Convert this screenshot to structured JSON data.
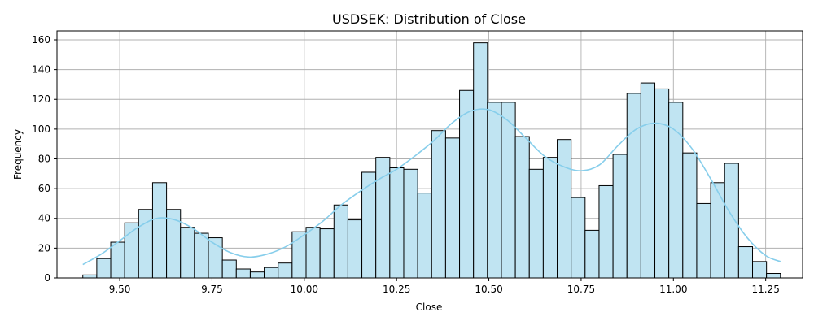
{
  "chart_data": {
    "type": "bar",
    "subtype": "histogram-with-kde",
    "title": "USDSEK: Distribution of Close",
    "xlabel": "Close",
    "ylabel": "Frequency",
    "xlim": [
      9.33,
      11.35
    ],
    "ylim": [
      0,
      166
    ],
    "grid": true,
    "xticks": [
      9.5,
      9.75,
      10.0,
      10.25,
      10.5,
      10.75,
      11.0,
      11.25
    ],
    "xtick_labels": [
      "9.50",
      "9.75",
      "10.00",
      "10.25",
      "10.50",
      "10.75",
      "11.00",
      "11.25"
    ],
    "yticks": [
      0,
      20,
      40,
      60,
      80,
      100,
      120,
      140,
      160
    ],
    "ytick_labels": [
      "0",
      "20",
      "40",
      "60",
      "80",
      "100",
      "120",
      "140",
      "160"
    ],
    "bin_start": 9.4,
    "bin_width": 0.0378,
    "counts": [
      2,
      13,
      24,
      37,
      46,
      64,
      46,
      34,
      30,
      27,
      12,
      6,
      4,
      7,
      10,
      31,
      34,
      33,
      49,
      39,
      71,
      81,
      74,
      73,
      57,
      99,
      94,
      126,
      158,
      118,
      118,
      95,
      73,
      81,
      93,
      54,
      32,
      62,
      83,
      124,
      131,
      127,
      118,
      84,
      50,
      64,
      77,
      21,
      11,
      3
    ],
    "kde": {
      "color": "#87ceeb",
      "x": [
        9.4,
        9.45,
        9.5,
        9.55,
        9.6,
        9.65,
        9.7,
        9.75,
        9.8,
        9.85,
        9.9,
        9.95,
        10.0,
        10.05,
        10.1,
        10.15,
        10.2,
        10.25,
        10.3,
        10.35,
        10.4,
        10.45,
        10.5,
        10.55,
        10.6,
        10.65,
        10.7,
        10.75,
        10.8,
        10.85,
        10.9,
        10.95,
        11.0,
        11.05,
        11.1,
        11.15,
        11.2,
        11.25,
        11.29
      ],
      "y": [
        9,
        16,
        25,
        34,
        40,
        39,
        33,
        24,
        17,
        14,
        16,
        21,
        29,
        38,
        49,
        58,
        66,
        73,
        82,
        92,
        104,
        112,
        113,
        106,
        94,
        82,
        75,
        72,
        76,
        89,
        100,
        104,
        100,
        87,
        67,
        45,
        27,
        15,
        11
      ]
    },
    "bar_fill": "#c0e4f2",
    "bar_edge": "#000000"
  }
}
